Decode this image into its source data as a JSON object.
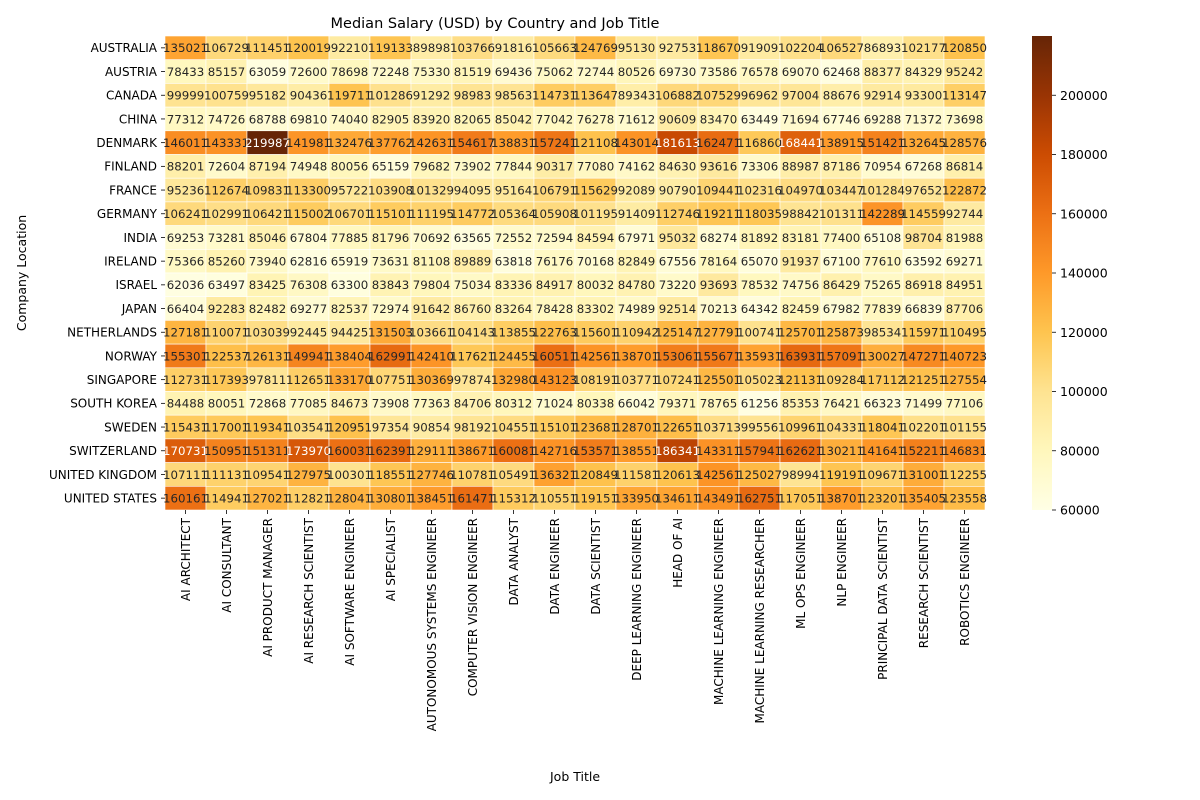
{
  "chart_data": {
    "type": "heatmap",
    "title": "Median Salary (USD) by Country and Job Title",
    "xlabel": "Job Title",
    "ylabel": "Company Location",
    "colormap": "YlOrBr",
    "colorbar_range": [
      60000,
      220000
    ],
    "colorbar_ticks": [
      "60000",
      "80000",
      "100000",
      "120000",
      "140000",
      "160000",
      "180000",
      "200000"
    ],
    "columns": [
      "AI ARCHITECT",
      "AI CONSULTANT",
      "AI PRODUCT MANAGER",
      "AI RESEARCH SCIENTIST",
      "AI SOFTWARE ENGINEER",
      "AI SPECIALIST",
      "AUTONOMOUS SYSTEMS ENGINEER",
      "COMPUTER VISION ENGINEER",
      "DATA ANALYST",
      "DATA ENGINEER",
      "DATA SCIENTIST",
      "DEEP LEARNING ENGINEER",
      "HEAD OF AI",
      "MACHINE LEARNING ENGINEER",
      "MACHINE LEARNING RESEARCHER",
      "ML OPS ENGINEER",
      "NLP ENGINEER",
      "PRINCIPAL DATA SCIENTIST",
      "RESEARCH SCIENTIST",
      "ROBOTICS ENGINEER"
    ],
    "rows": [
      "AUSTRALIA",
      "AUSTRIA",
      "CANADA",
      "CHINA",
      "DENMARK",
      "FINLAND",
      "FRANCE",
      "GERMANY",
      "INDIA",
      "IRELAND",
      "ISRAEL",
      "JAPAN",
      "NETHERLANDS",
      "NORWAY",
      "SINGAPORE",
      "SOUTH KOREA",
      "SWEDEN",
      "SWITZERLAND",
      "UNITED KINGDOM",
      "UNITED STATES"
    ],
    "values": [
      [
        135021,
        106729,
        111451,
        120019,
        92210,
        119133,
        89898,
        103766,
        91816,
        105663,
        124769,
        95130,
        92753,
        118670,
        91909,
        102204,
        106527,
        86893,
        102177,
        120850
      ],
      [
        78433,
        85157,
        63059,
        72600,
        78698,
        72248,
        75330,
        81519,
        69436,
        75062,
        72744,
        80526,
        69730,
        73586,
        76578,
        69070,
        62468,
        88377,
        84329,
        95242
      ],
      [
        99999,
        100759,
        95182,
        90436,
        119711,
        101286,
        91292,
        98983,
        98563,
        114731,
        113647,
        89343,
        106882,
        107529,
        96962,
        97004,
        88676,
        92914,
        93300,
        113147
      ],
      [
        77312,
        74726,
        68788,
        69810,
        74040,
        82905,
        83920,
        82065,
        85042,
        77042,
        76278,
        71612,
        90609,
        83470,
        63449,
        71694,
        67746,
        69288,
        71372,
        73698
      ],
      [
        146011,
        143331,
        219987,
        141981,
        132476,
        137762,
        142631,
        154617,
        138831,
        157241,
        121108,
        143014,
        181613,
        162471,
        116860,
        168441,
        138915,
        151421,
        132645,
        128576
      ],
      [
        88201,
        72604,
        87194,
        74948,
        80056,
        65159,
        79682,
        73902,
        77844,
        90317,
        77080,
        74162,
        84630,
        93616,
        73306,
        88987,
        87186,
        70954,
        67268,
        86814
      ],
      [
        95236,
        112674,
        109831,
        113300,
        95722,
        103908,
        101329,
        94095,
        95164,
        106791,
        115629,
        92089,
        90790,
        109441,
        102316,
        104970,
        103447,
        101284,
        97652,
        122872
      ],
      [
        106241,
        102991,
        106421,
        115002,
        106701,
        115101,
        111195,
        114772,
        105364,
        105908,
        101195,
        91409,
        112746,
        119211,
        118035,
        98842,
        101311,
        142289,
        114559,
        92744
      ],
      [
        69253,
        73281,
        85046,
        67804,
        77885,
        81796,
        70692,
        63565,
        72552,
        72594,
        84594,
        67971,
        95032,
        68274,
        81892,
        83181,
        77400,
        65108,
        98704,
        81988
      ],
      [
        75366,
        85260,
        73940,
        62816,
        65919,
        73631,
        81108,
        89889,
        63818,
        76176,
        70168,
        82849,
        67556,
        78164,
        65070,
        91937,
        67100,
        77610,
        63592,
        69271
      ],
      [
        62036,
        63497,
        83425,
        76308,
        63300,
        83843,
        79804,
        75034,
        83336,
        84917,
        80032,
        84780,
        73220,
        93693,
        78532,
        74756,
        86429,
        75265,
        86918,
        84951
      ],
      [
        66404,
        92283,
        82482,
        69277,
        82537,
        72974,
        91642,
        86760,
        83264,
        78428,
        83302,
        74989,
        92514,
        70213,
        64342,
        82459,
        67982,
        77839,
        66839,
        87706
      ],
      [
        127181,
        110071,
        103039,
        92445,
        94425,
        131503,
        103661,
        104143,
        113855,
        122763,
        115601,
        110942,
        125147,
        127791,
        100741,
        125701,
        125873,
        98534,
        115971,
        110495
      ],
      [
        155301,
        122537,
        126131,
        149941,
        138404,
        162991,
        142410,
        117621,
        124455,
        160511,
        142561,
        138701,
        153061,
        155671,
        135931,
        163931,
        157091,
        130027,
        147271,
        140723
      ],
      [
        112731,
        117393,
        97811,
        112651,
        133170,
        107751,
        130369,
        97874,
        132980,
        143123,
        108191,
        103771,
        107241,
        125501,
        105023,
        121131,
        109284,
        117112,
        121251,
        127554
      ],
      [
        84488,
        80051,
        72868,
        77085,
        84673,
        73908,
        77363,
        84706,
        80312,
        71024,
        80338,
        66042,
        79371,
        78765,
        61256,
        85353,
        76421,
        66323,
        71499,
        77106
      ],
      [
        115431,
        117001,
        119341,
        103541,
        120951,
        97354,
        90854,
        98192,
        104551,
        115101,
        123681,
        128701,
        122651,
        103713,
        99556,
        109961,
        104331,
        118041,
        102201,
        101155
      ],
      [
        170731,
        150951,
        151311,
        173970,
        160031,
        162391,
        129111,
        138671,
        160081,
        142716,
        153571,
        138551,
        186341,
        143311,
        157941,
        162621,
        130211,
        141641,
        152211,
        146831
      ],
      [
        107111,
        111131,
        109541,
        127975,
        100301,
        118551,
        127746,
        110781,
        105491,
        136321,
        120849,
        111581,
        120613,
        142561,
        125027,
        98994,
        119191,
        109671,
        131001,
        112255
      ],
      [
        160161,
        114941,
        127021,
        112821,
        128041,
        130801,
        138451,
        161471,
        115312,
        110551,
        119151,
        133950,
        134611,
        143491,
        162751,
        117051,
        138701,
        123201,
        135405,
        123558
      ]
    ]
  }
}
